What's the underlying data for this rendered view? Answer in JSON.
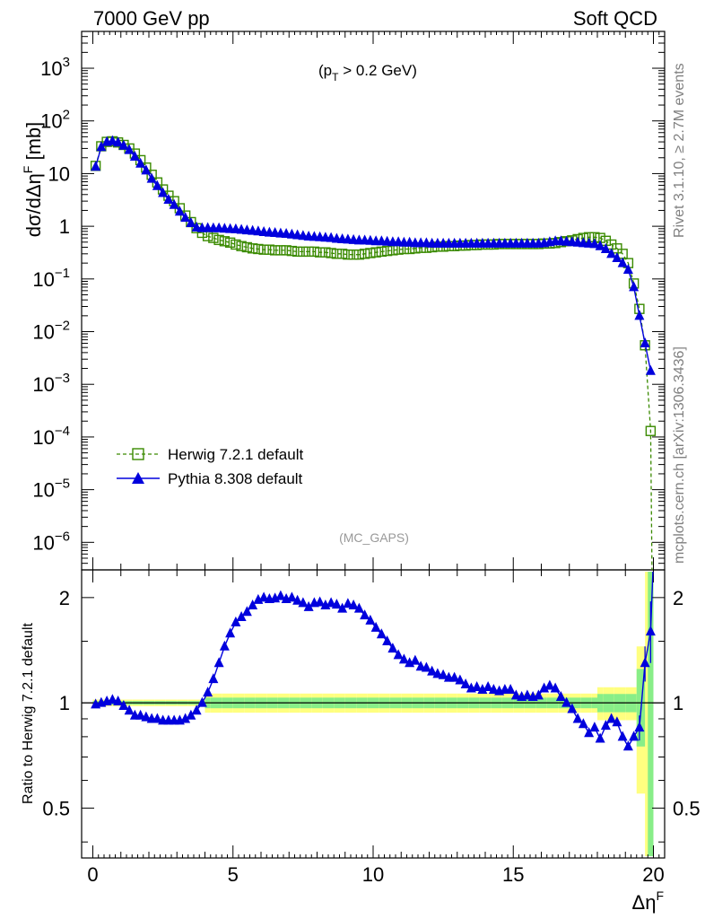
{
  "header": {
    "left": "7000 GeV pp",
    "right": "Soft QCD"
  },
  "annotation": {
    "cut_prefix": "(p",
    "cut_sub": "T",
    "cut_suffix": " > 0.2 GeV)",
    "analysis": "(MC_GAPS)"
  },
  "side_text": {
    "version": "Rivet 3.1.10, ≥ 2.7M events",
    "source": "mcplots.cern.ch [arXiv:1306.3436]"
  },
  "colors": {
    "herwig": "#3a8a00",
    "pythia": "#0000dd",
    "band_outer": "#ffff80",
    "band_inner": "#88ee88"
  },
  "chart_data": [
    {
      "type": "line",
      "ylabel": "dσ/dΔη^F [mb]",
      "xlabel": "",
      "yscale": "log",
      "ylim": [
        3e-07,
        5000
      ],
      "xlim": [
        -0.4,
        20.4
      ],
      "yticks": [
        {
          "v": 1e-06,
          "m": "10",
          "e": "−6"
        },
        {
          "v": 1e-05,
          "m": "10",
          "e": "−5"
        },
        {
          "v": 0.0001,
          "m": "10",
          "e": "−4"
        },
        {
          "v": 0.001,
          "m": "10",
          "e": "−3"
        },
        {
          "v": 0.01,
          "m": "10",
          "e": "−2"
        },
        {
          "v": 0.1,
          "m": "10",
          "e": "−1"
        },
        {
          "v": 1,
          "m": "1",
          "e": ""
        },
        {
          "v": 10,
          "m": "10",
          "e": ""
        },
        {
          "v": 100,
          "m": "10",
          "e": "2"
        },
        {
          "v": 1000,
          "m": "10",
          "e": "3"
        }
      ],
      "legend": "left",
      "series": [
        {
          "name": "Herwig 7.2.1 default",
          "marker": "open-square",
          "line": "dashed",
          "x": [
            0.1,
            0.3,
            0.5,
            0.7,
            0.9,
            1.1,
            1.3,
            1.5,
            1.7,
            1.9,
            2.1,
            2.3,
            2.5,
            2.7,
            2.9,
            3.1,
            3.3,
            3.5,
            3.7,
            3.9,
            4.1,
            4.3,
            4.5,
            4.7,
            4.9,
            5.1,
            5.3,
            5.5,
            5.7,
            5.9,
            6.1,
            6.3,
            6.5,
            6.7,
            6.9,
            7.1,
            7.3,
            7.5,
            7.7,
            7.9,
            8.1,
            8.3,
            8.5,
            8.7,
            8.9,
            9.1,
            9.3,
            9.5,
            9.7,
            9.9,
            10.1,
            10.3,
            10.5,
            10.7,
            10.9,
            11.1,
            11.3,
            11.5,
            11.7,
            11.9,
            12.1,
            12.3,
            12.5,
            12.7,
            12.9,
            13.1,
            13.3,
            13.5,
            13.7,
            13.9,
            14.1,
            14.3,
            14.5,
            14.7,
            14.9,
            15.1,
            15.3,
            15.5,
            15.7,
            15.9,
            16.1,
            16.3,
            16.5,
            16.7,
            16.9,
            17.1,
            17.3,
            17.5,
            17.7,
            17.9,
            18.1,
            18.3,
            18.5,
            18.7,
            18.9,
            19.1,
            19.3,
            19.5,
            19.7,
            19.9
          ],
          "y": [
            14,
            33,
            40,
            41,
            39,
            35,
            30,
            24,
            18,
            13,
            9.5,
            6.8,
            5.0,
            3.8,
            3.0,
            2.2,
            1.6,
            1.2,
            0.92,
            0.75,
            0.65,
            0.6,
            0.55,
            0.52,
            0.49,
            0.45,
            0.42,
            0.4,
            0.38,
            0.37,
            0.36,
            0.36,
            0.35,
            0.35,
            0.35,
            0.34,
            0.33,
            0.33,
            0.33,
            0.33,
            0.32,
            0.32,
            0.31,
            0.3,
            0.3,
            0.29,
            0.29,
            0.29,
            0.3,
            0.31,
            0.32,
            0.33,
            0.34,
            0.35,
            0.36,
            0.37,
            0.37,
            0.38,
            0.39,
            0.39,
            0.4,
            0.41,
            0.41,
            0.42,
            0.42,
            0.43,
            0.43,
            0.44,
            0.44,
            0.45,
            0.45,
            0.45,
            0.46,
            0.46,
            0.46,
            0.46,
            0.46,
            0.46,
            0.46,
            0.46,
            0.47,
            0.47,
            0.48,
            0.5,
            0.52,
            0.54,
            0.57,
            0.6,
            0.62,
            0.62,
            0.6,
            0.53,
            0.45,
            0.38,
            0.3,
            0.2,
            0.082,
            0.027,
            0.0055,
            0.00013
          ]
        },
        {
          "name": "Pythia 8.308 default",
          "marker": "filled-triangle",
          "line": "solid",
          "x": [
            0.1,
            0.3,
            0.5,
            0.7,
            0.9,
            1.1,
            1.3,
            1.5,
            1.7,
            1.9,
            2.1,
            2.3,
            2.5,
            2.7,
            2.9,
            3.1,
            3.3,
            3.5,
            3.7,
            3.9,
            4.1,
            4.3,
            4.5,
            4.7,
            4.9,
            5.1,
            5.3,
            5.5,
            5.7,
            5.9,
            6.1,
            6.3,
            6.5,
            6.7,
            6.9,
            7.1,
            7.3,
            7.5,
            7.7,
            7.9,
            8.1,
            8.3,
            8.5,
            8.7,
            8.9,
            9.1,
            9.3,
            9.5,
            9.7,
            9.9,
            10.1,
            10.3,
            10.5,
            10.7,
            10.9,
            11.1,
            11.3,
            11.5,
            11.7,
            11.9,
            12.1,
            12.3,
            12.5,
            12.7,
            12.9,
            13.1,
            13.3,
            13.5,
            13.7,
            13.9,
            14.1,
            14.3,
            14.5,
            14.7,
            14.9,
            15.1,
            15.3,
            15.5,
            15.7,
            15.9,
            16.1,
            16.3,
            16.5,
            16.7,
            16.9,
            17.1,
            17.3,
            17.5,
            17.7,
            17.9,
            18.1,
            18.3,
            18.5,
            18.7,
            18.9,
            19.1,
            19.3,
            19.5,
            19.7,
            19.9
          ],
          "y": [
            13.5,
            32,
            40,
            41.5,
            39,
            34,
            28,
            21,
            15.5,
            11.5,
            8.0,
            5.8,
            4.3,
            3.2,
            2.55,
            1.9,
            1.45,
            1.15,
            0.95,
            0.92,
            0.93,
            0.92,
            0.92,
            0.9,
            0.89,
            0.88,
            0.86,
            0.84,
            0.82,
            0.8,
            0.78,
            0.76,
            0.75,
            0.73,
            0.72,
            0.7,
            0.68,
            0.66,
            0.64,
            0.63,
            0.62,
            0.61,
            0.6,
            0.58,
            0.57,
            0.56,
            0.55,
            0.54,
            0.54,
            0.53,
            0.52,
            0.52,
            0.51,
            0.5,
            0.5,
            0.49,
            0.49,
            0.48,
            0.48,
            0.48,
            0.47,
            0.47,
            0.47,
            0.47,
            0.47,
            0.47,
            0.47,
            0.47,
            0.47,
            0.47,
            0.47,
            0.47,
            0.47,
            0.47,
            0.47,
            0.47,
            0.47,
            0.47,
            0.47,
            0.47,
            0.48,
            0.5,
            0.52,
            0.52,
            0.51,
            0.5,
            0.49,
            0.48,
            0.47,
            0.46,
            0.42,
            0.37,
            0.3,
            0.25,
            0.2,
            0.15,
            0.07,
            0.02,
            0.006,
            0.0018
          ]
        }
      ]
    },
    {
      "type": "line",
      "ylabel": "Ratio to Herwig 7.2.1 default",
      "xlabel": "Δη^F",
      "yscale": "log",
      "ylim": [
        0.36,
        2.4
      ],
      "xlim": [
        -0.4,
        20.4
      ],
      "xticks": [
        0,
        5,
        10,
        15,
        20
      ],
      "yticks": [
        {
          "v": 0.5,
          "label": "0.5"
        },
        {
          "v": 1,
          "label": "1"
        },
        {
          "v": 2,
          "label": "2"
        }
      ],
      "reference_line": 1,
      "series": [
        {
          "name": "Pythia 8.308 default",
          "marker": "filled-triangle",
          "x": [
            0.1,
            0.3,
            0.5,
            0.7,
            0.9,
            1.1,
            1.3,
            1.5,
            1.7,
            1.9,
            2.1,
            2.3,
            2.5,
            2.7,
            2.9,
            3.1,
            3.3,
            3.5,
            3.7,
            3.9,
            4.1,
            4.3,
            4.5,
            4.7,
            4.9,
            5.1,
            5.3,
            5.5,
            5.7,
            5.9,
            6.1,
            6.3,
            6.5,
            6.7,
            6.9,
            7.1,
            7.3,
            7.5,
            7.7,
            7.9,
            8.1,
            8.3,
            8.5,
            8.7,
            8.9,
            9.1,
            9.3,
            9.5,
            9.7,
            9.9,
            10.1,
            10.3,
            10.5,
            10.7,
            10.9,
            11.1,
            11.3,
            11.5,
            11.7,
            11.9,
            12.1,
            12.3,
            12.5,
            12.7,
            12.9,
            13.1,
            13.3,
            13.5,
            13.7,
            13.9,
            14.1,
            14.3,
            14.5,
            14.7,
            14.9,
            15.1,
            15.3,
            15.5,
            15.7,
            15.9,
            16.1,
            16.3,
            16.5,
            16.7,
            16.9,
            17.1,
            17.3,
            17.5,
            17.7,
            17.9,
            18.1,
            18.3,
            18.5,
            18.7,
            18.9,
            19.1,
            19.3,
            19.5,
            19.7,
            19.9
          ],
          "y": [
            0.99,
            1.0,
            1.01,
            1.02,
            1.01,
            0.98,
            0.95,
            0.92,
            0.92,
            0.91,
            0.9,
            0.9,
            0.89,
            0.89,
            0.89,
            0.89,
            0.9,
            0.92,
            0.95,
            1.0,
            1.07,
            1.17,
            1.3,
            1.45,
            1.58,
            1.7,
            1.76,
            1.82,
            1.9,
            1.97,
            2.0,
            1.98,
            1.99,
            2.02,
            1.98,
            2.0,
            1.96,
            1.93,
            1.88,
            1.93,
            1.94,
            1.9,
            1.93,
            1.91,
            1.86,
            1.92,
            1.9,
            1.86,
            1.78,
            1.72,
            1.64,
            1.57,
            1.5,
            1.43,
            1.37,
            1.33,
            1.3,
            1.32,
            1.27,
            1.26,
            1.23,
            1.21,
            1.2,
            1.18,
            1.18,
            1.16,
            1.13,
            1.1,
            1.11,
            1.09,
            1.11,
            1.09,
            1.08,
            1.09,
            1.09,
            1.05,
            1.04,
            1.05,
            1.04,
            1.05,
            1.1,
            1.12,
            1.1,
            1.04,
            1.0,
            0.96,
            0.9,
            0.87,
            0.82,
            0.85,
            0.79,
            0.86,
            0.9,
            0.88,
            0.8,
            0.75,
            0.8,
            0.85,
            1.3,
            1.6
          ]
        }
      ]
    }
  ]
}
